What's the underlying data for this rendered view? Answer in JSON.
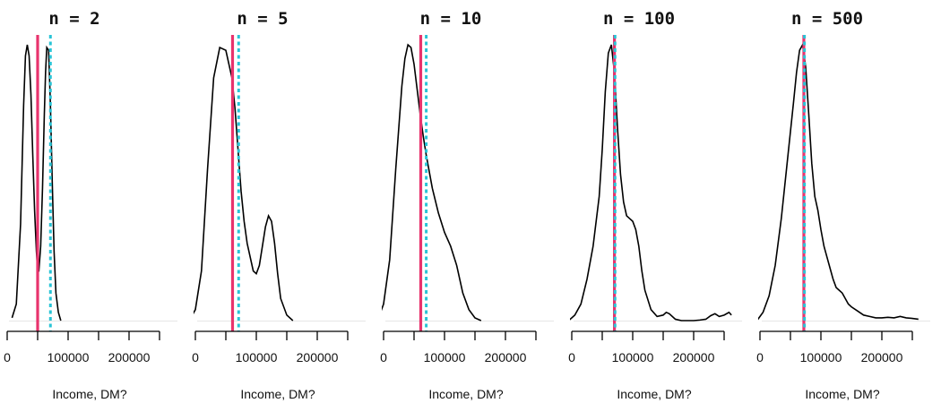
{
  "colors": {
    "median": "#e8336d",
    "mean": "#29c4d6",
    "curve": "#000000"
  },
  "chart_data": [
    {
      "type": "line",
      "title": "n =  2",
      "xlabel": "Income, DM?",
      "ylabel": "",
      "xlim": [
        0,
        250000
      ],
      "x_ticks": [
        0,
        50000,
        100000,
        150000,
        200000,
        250000
      ],
      "x_tick_labels": [
        "0",
        "",
        "100000",
        "",
        "200000",
        ""
      ],
      "median": 50000,
      "mean": 71000,
      "series": [
        {
          "x": [
            8000,
            15000,
            22000,
            27000,
            30000,
            33000,
            36000,
            39000,
            42000,
            45000,
            48000,
            50000,
            52000,
            55000,
            58000,
            61000,
            63000,
            65000,
            68000,
            71000,
            74000,
            77000,
            80000,
            84000,
            88000
          ],
          "y": [
            0.01,
            0.06,
            0.35,
            0.78,
            0.96,
            1.0,
            0.96,
            0.82,
            0.6,
            0.4,
            0.25,
            0.18,
            0.18,
            0.27,
            0.48,
            0.75,
            0.9,
            0.99,
            0.98,
            0.78,
            0.5,
            0.25,
            0.1,
            0.03,
            0.0
          ]
        }
      ]
    },
    {
      "type": "line",
      "title": "n =  5",
      "xlabel": "Income, DM?",
      "ylabel": "",
      "xlim": [
        0,
        250000
      ],
      "x_ticks": [
        0,
        50000,
        100000,
        150000,
        200000,
        250000
      ],
      "x_tick_labels": [
        "0",
        "",
        "100000",
        "",
        "200000",
        ""
      ],
      "median": 61000,
      "mean": 71000,
      "series": [
        {
          "x": [
            -10000,
            0,
            10000,
            20000,
            30000,
            40000,
            50000,
            60000,
            65000,
            70000,
            75000,
            80000,
            85000,
            90000,
            95000,
            100000,
            105000,
            110000,
            115000,
            120000,
            125000,
            130000,
            135000,
            140000,
            150000,
            160000
          ],
          "y": [
            0.0,
            0.04,
            0.18,
            0.55,
            0.88,
            0.99,
            0.98,
            0.88,
            0.77,
            0.62,
            0.47,
            0.36,
            0.28,
            0.23,
            0.18,
            0.17,
            0.2,
            0.27,
            0.34,
            0.38,
            0.36,
            0.28,
            0.17,
            0.08,
            0.02,
            0.0
          ]
        }
      ]
    },
    {
      "type": "line",
      "title": "n =  10",
      "xlabel": "Income, DM?",
      "ylabel": "",
      "xlim": [
        0,
        250000
      ],
      "x_ticks": [
        0,
        50000,
        100000,
        150000,
        200000,
        250000
      ],
      "x_tick_labels": [
        "0",
        "",
        "100000",
        "",
        "200000",
        ""
      ],
      "median": 61000,
      "mean": 70000,
      "series": [
        {
          "x": [
            -10000,
            0,
            10000,
            20000,
            30000,
            35000,
            40000,
            45000,
            50000,
            55000,
            60000,
            65000,
            70000,
            75000,
            80000,
            90000,
            100000,
            110000,
            120000,
            125000,
            130000,
            140000,
            150000,
            160000
          ],
          "y": [
            0.0,
            0.06,
            0.22,
            0.55,
            0.85,
            0.95,
            1.0,
            0.99,
            0.93,
            0.84,
            0.75,
            0.67,
            0.6,
            0.54,
            0.48,
            0.39,
            0.32,
            0.27,
            0.2,
            0.15,
            0.1,
            0.04,
            0.01,
            0.0
          ]
        }
      ]
    },
    {
      "type": "line",
      "title": "n =  100",
      "xlabel": "Income, DM?",
      "ylabel": "",
      "xlim": [
        0,
        250000
      ],
      "x_ticks": [
        0,
        50000,
        100000,
        150000,
        200000,
        250000
      ],
      "x_tick_labels": [
        "0",
        "",
        "100000",
        "",
        "200000",
        ""
      ],
      "median": 70000,
      "mean": 71000,
      "series": [
        {
          "x": [
            -5000,
            5000,
            15000,
            25000,
            35000,
            45000,
            50000,
            55000,
            60000,
            65000,
            70000,
            75000,
            80000,
            85000,
            90000,
            95000,
            100000,
            105000,
            110000,
            115000,
            120000,
            130000,
            140000,
            150000,
            155000,
            160000,
            170000,
            180000,
            190000,
            200000,
            210000,
            220000,
            228000,
            235000,
            242000,
            250000,
            258000,
            262000
          ],
          "y": [
            0.0,
            0.02,
            0.06,
            0.15,
            0.27,
            0.45,
            0.62,
            0.83,
            0.97,
            1.0,
            0.9,
            0.7,
            0.53,
            0.43,
            0.38,
            0.37,
            0.36,
            0.33,
            0.27,
            0.18,
            0.11,
            0.04,
            0.015,
            0.02,
            0.03,
            0.025,
            0.005,
            0.0,
            0.0,
            0.0,
            0.002,
            0.005,
            0.018,
            0.025,
            0.015,
            0.02,
            0.03,
            0.02
          ]
        }
      ]
    },
    {
      "type": "line",
      "title": "n =  500",
      "xlabel": "Income, DM?",
      "ylabel": "",
      "xlim": [
        0,
        250000
      ],
      "x_ticks": [
        0,
        50000,
        100000,
        150000,
        200000,
        250000
      ],
      "x_tick_labels": [
        "0",
        "",
        "100000",
        "",
        "200000",
        ""
      ],
      "median": 72000,
      "mean": 73000,
      "series": [
        {
          "x": [
            -5000,
            5000,
            15000,
            25000,
            35000,
            45000,
            55000,
            60000,
            65000,
            70000,
            75000,
            80000,
            85000,
            90000,
            95000,
            100000,
            105000,
            110000,
            115000,
            120000,
            125000,
            130000,
            135000,
            140000,
            145000,
            150000,
            160000,
            170000,
            180000,
            190000,
            200000,
            210000,
            220000,
            230000,
            240000,
            250000,
            260000
          ],
          "y": [
            0.0,
            0.03,
            0.09,
            0.2,
            0.37,
            0.58,
            0.79,
            0.9,
            0.98,
            1.0,
            0.92,
            0.75,
            0.57,
            0.45,
            0.4,
            0.33,
            0.27,
            0.23,
            0.19,
            0.15,
            0.12,
            0.11,
            0.1,
            0.08,
            0.06,
            0.05,
            0.035,
            0.02,
            0.015,
            0.01,
            0.01,
            0.012,
            0.01,
            0.015,
            0.01,
            0.008,
            0.005
          ]
        }
      ]
    }
  ]
}
